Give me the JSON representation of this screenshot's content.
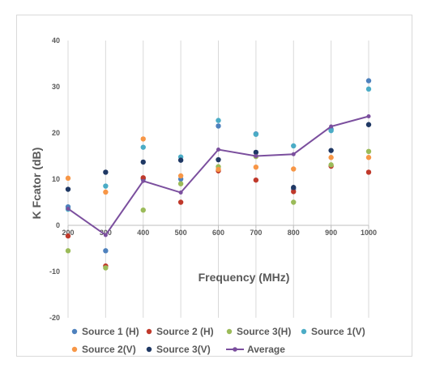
{
  "chart_data": {
    "type": "scatter",
    "title": "",
    "xlabel": "Frequency (MHz)",
    "ylabel": "K Fcator (dB)",
    "x": [
      200,
      300,
      400,
      500,
      600,
      700,
      800,
      900,
      1000
    ],
    "x_tick_labels": [
      "200",
      "300",
      "400",
      "500",
      "600",
      "700",
      "800",
      "900",
      "1000"
    ],
    "ylim": [
      -20,
      40
    ],
    "y_ticks": [
      -20,
      -10,
      0,
      10,
      20,
      30,
      40
    ],
    "y_tick_labels": [
      "-20",
      "-10",
      "0",
      "10",
      "20",
      "30",
      "40"
    ],
    "grid": "vertical",
    "legend_position": "bottom",
    "series": [
      {
        "name": "Source 1 (H)",
        "color": "#4e81bd",
        "style": "markers",
        "values": [
          4,
          -5.5,
          10,
          10,
          21.5,
          19.8,
          7.8,
          20.8,
          31.3
        ]
      },
      {
        "name": "Source 2 (H)",
        "color": "#c0392b",
        "style": "markers",
        "values": [
          -2.3,
          -8.8,
          10.3,
          5,
          11.8,
          9.8,
          7.3,
          12.8,
          11.5
        ]
      },
      {
        "name": "Source 3(H)",
        "color": "#9bbb59",
        "style": "markers",
        "values": [
          -5.5,
          -9.2,
          3.3,
          9,
          12.7,
          14.9,
          5,
          13.1,
          16
        ]
      },
      {
        "name": "Source 1(V)",
        "color": "#4bacc6",
        "style": "markers",
        "values": [
          3.5,
          8.5,
          16.9,
          14.8,
          22.7,
          19.7,
          17.2,
          20.5,
          29.5
        ]
      },
      {
        "name": "Source 2(V)",
        "color": "#f79646",
        "style": "markers",
        "values": [
          10.2,
          7.2,
          18.7,
          10.7,
          12.1,
          12.6,
          12.2,
          14.7,
          14.7
        ]
      },
      {
        "name": "Source 3(V)",
        "color": "#1f3864",
        "style": "markers",
        "values": [
          7.8,
          11.5,
          13.7,
          14.1,
          14.2,
          15.8,
          8.2,
          16.2,
          21.8
        ]
      },
      {
        "name": "Average",
        "color": "#7b4f9e",
        "style": "line-markers",
        "values": [
          3.6,
          -2.1,
          9.6,
          7.1,
          16.4,
          15.0,
          15.4,
          21.4,
          23.6
        ]
      }
    ]
  }
}
